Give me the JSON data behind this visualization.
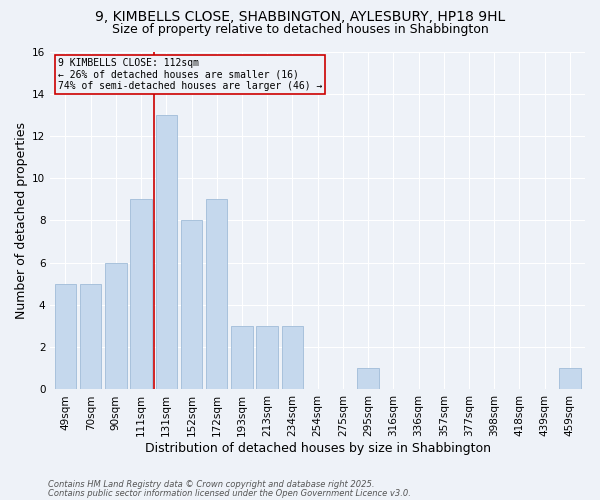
{
  "title1": "9, KIMBELLS CLOSE, SHABBINGTON, AYLESBURY, HP18 9HL",
  "title2": "Size of property relative to detached houses in Shabbington",
  "xlabel": "Distribution of detached houses by size in Shabbington",
  "ylabel": "Number of detached properties",
  "footnote1": "Contains HM Land Registry data © Crown copyright and database right 2025.",
  "footnote2": "Contains public sector information licensed under the Open Government Licence v3.0.",
  "bar_labels": [
    "49sqm",
    "70sqm",
    "90sqm",
    "111sqm",
    "131sqm",
    "152sqm",
    "172sqm",
    "193sqm",
    "213sqm",
    "234sqm",
    "254sqm",
    "275sqm",
    "295sqm",
    "316sqm",
    "336sqm",
    "357sqm",
    "377sqm",
    "398sqm",
    "418sqm",
    "439sqm",
    "459sqm"
  ],
  "bar_values": [
    5,
    5,
    6,
    9,
    13,
    8,
    9,
    3,
    3,
    3,
    0,
    0,
    1,
    0,
    0,
    0,
    0,
    0,
    0,
    0,
    1
  ],
  "bar_color": "#c5d8ed",
  "bar_edgecolor": "#a0bcd8",
  "reference_line_x": 3.5,
  "reference_line_label": "9 KIMBELLS CLOSE: 112sqm",
  "annotation_line1": "← 26% of detached houses are smaller (16)",
  "annotation_line2": "74% of semi-detached houses are larger (46) →",
  "ref_line_color": "#cc0000",
  "box_edgecolor": "#cc0000",
  "ylim": [
    0,
    16
  ],
  "yticks": [
    0,
    2,
    4,
    6,
    8,
    10,
    12,
    14,
    16
  ],
  "background_color": "#eef2f8",
  "grid_color": "#ffffff",
  "title_fontsize": 10,
  "subtitle_fontsize": 9,
  "axis_label_fontsize": 9,
  "tick_fontsize": 7.5,
  "annotation_fontsize": 7,
  "footnote_fontsize": 6
}
